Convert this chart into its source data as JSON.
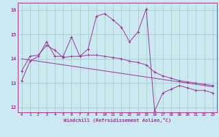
{
  "xlabel": "Windchill (Refroidissement éolien,°C)",
  "bg_color": "#cce8f0",
  "line_color": "#993399",
  "grid_color": "#99ccbb",
  "xlim_min": -0.5,
  "xlim_max": 23.5,
  "ylim_min": 11.8,
  "ylim_max": 16.3,
  "xticks": [
    0,
    1,
    2,
    3,
    4,
    5,
    6,
    7,
    8,
    9,
    10,
    11,
    12,
    13,
    14,
    15,
    16,
    17,
    18,
    19,
    20,
    21,
    22,
    23
  ],
  "yticks": [
    12,
    13,
    14,
    15,
    16
  ],
  "series1_x": [
    0,
    1,
    2,
    3,
    4,
    5,
    6,
    7,
    8,
    9,
    10,
    11,
    12,
    13,
    14,
    15,
    16,
    17,
    18,
    19,
    20,
    21,
    22,
    23
  ],
  "series1_y": [
    13.1,
    13.9,
    14.1,
    14.7,
    14.1,
    14.1,
    14.9,
    14.1,
    14.4,
    15.75,
    15.85,
    15.6,
    15.3,
    14.7,
    15.1,
    16.05,
    11.85,
    12.6,
    12.75,
    12.9,
    12.8,
    12.7,
    12.7,
    12.6
  ],
  "series2_x": [
    0,
    1,
    2,
    3,
    4,
    5,
    6,
    7,
    8,
    9,
    10,
    11,
    12,
    13,
    14,
    15,
    16,
    17,
    18,
    19,
    20,
    21,
    22,
    23
  ],
  "series2_y": [
    13.5,
    14.1,
    14.15,
    14.55,
    14.35,
    14.05,
    14.1,
    14.1,
    14.15,
    14.15,
    14.1,
    14.05,
    14.0,
    13.9,
    13.85,
    13.75,
    13.45,
    13.3,
    13.2,
    13.1,
    13.05,
    13.0,
    12.95,
    12.9
  ],
  "series3_x": [
    0,
    23
  ],
  "series3_y": [
    14.0,
    12.85
  ]
}
